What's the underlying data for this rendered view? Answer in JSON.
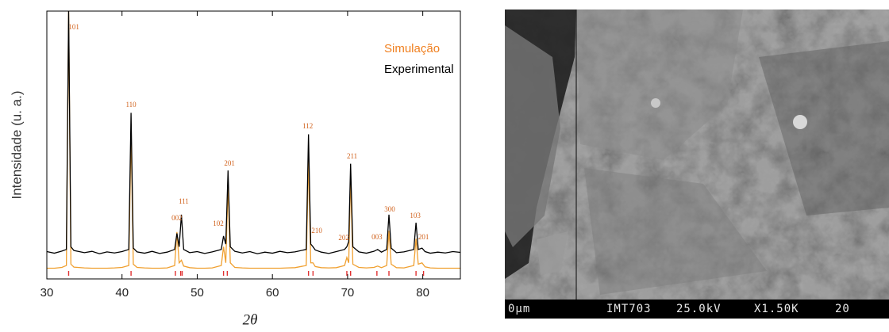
{
  "chart_data": {
    "type": "line",
    "ylabel": "Intensidade (u. a.)",
    "xlabel": "2θ",
    "xlim": [
      30,
      85
    ],
    "ylim": [
      0,
      100
    ],
    "xticks": [
      30,
      40,
      50,
      60,
      70,
      80
    ],
    "legend": "top-right",
    "x": [
      30,
      31,
      32,
      32.6,
      32.9,
      33.2,
      33.6,
      35,
      36,
      37,
      38,
      39,
      40,
      40.9,
      41.2,
      41.5,
      42,
      43,
      44,
      45,
      46,
      47.0,
      47.3,
      47.6,
      47.9,
      48.2,
      49,
      50,
      51,
      52,
      53.2,
      53.5,
      53.8,
      54.1,
      54.4,
      55,
      56,
      57,
      58,
      59,
      60,
      61,
      62,
      63,
      64.5,
      64.8,
      65.1,
      65.4,
      65.7,
      66.5,
      67.5,
      68.5,
      69.6,
      69.9,
      70.15,
      70.4,
      70.7,
      71.5,
      72.5,
      73.5,
      74,
      74.5,
      75.2,
      75.5,
      75.8,
      76.5,
      77.5,
      78.8,
      79.1,
      79.4,
      79.9,
      80.3,
      81,
      82,
      83,
      84,
      85
    ],
    "series": [
      {
        "name": "Simulação",
        "color": "#f0a030",
        "values": [
          4,
          4,
          4.3,
          5,
          100,
          5.5,
          4.4,
          4.1,
          4,
          4,
          4,
          4.1,
          4.3,
          5,
          55,
          5.5,
          4.3,
          4.1,
          4,
          4,
          4.1,
          5,
          17.5,
          6,
          7,
          4.8,
          4.2,
          4,
          4,
          4.1,
          5,
          12,
          6,
          35,
          6,
          4.3,
          4.1,
          4,
          4,
          4,
          4,
          4,
          4.1,
          4.2,
          5,
          45,
          6,
          6,
          4.6,
          4.2,
          4.1,
          4.2,
          5,
          8,
          6,
          38.5,
          5.5,
          4.3,
          4.1,
          4.3,
          4.8,
          4.2,
          5,
          18,
          5.5,
          4.2,
          4.1,
          5,
          15,
          5.5,
          6,
          4.5,
          4.1,
          4,
          4,
          4,
          4
        ]
      },
      {
        "name": "Experimental",
        "color": "#000000",
        "values": [
          10.2,
          9.6,
          10.4,
          11,
          100,
          12,
          10.6,
          9.8,
          10.3,
          9.4,
          10.1,
          9.7,
          10.2,
          11,
          62,
          11.5,
          10.1,
          9.6,
          10.3,
          9.5,
          10,
          11,
          17,
          12,
          24,
          11,
          9.8,
          10.2,
          9.5,
          10.1,
          11,
          16,
          13,
          40.5,
          12,
          10.3,
          9.7,
          10.2,
          9.4,
          10,
          9.6,
          10.3,
          9.8,
          10.1,
          11,
          54,
          13,
          12,
          10.8,
          10,
          9.5,
          10.2,
          11,
          12,
          14,
          43,
          12,
          10.1,
          9.6,
          10.3,
          11,
          10,
          11,
          24,
          11.5,
          9.8,
          10.1,
          11,
          21,
          11,
          11.5,
          10.2,
          9.6,
          10,
          9.7,
          10.2,
          9.9
        ]
      }
    ],
    "reflections": {
      "color": "#e03030",
      "x": [
        32.9,
        41.2,
        47.1,
        47.8,
        48.0,
        53.5,
        54.0,
        64.8,
        65.4,
        69.9,
        70.4,
        73.9,
        75.5,
        79.1,
        80.1
      ]
    },
    "annotations": [
      {
        "text": "101",
        "x": 33.6,
        "y": 93.8
      },
      {
        "text": "110",
        "x": 41.2,
        "y": 64.8
      },
      {
        "text": "002",
        "x": 47.3,
        "y": 22.5
      },
      {
        "text": "111",
        "x": 48.2,
        "y": 28.7
      },
      {
        "text": "102",
        "x": 52.8,
        "y": 20.4
      },
      {
        "text": "201",
        "x": 54.3,
        "y": 42.9
      },
      {
        "text": "112",
        "x": 64.7,
        "y": 56.8
      },
      {
        "text": "210",
        "x": 65.9,
        "y": 17.8
      },
      {
        "text": "202",
        "x": 69.5,
        "y": 15.1
      },
      {
        "text": "211",
        "x": 70.6,
        "y": 45.6
      },
      {
        "text": "003",
        "x": 73.9,
        "y": 15.4
      },
      {
        "text": "300",
        "x": 75.6,
        "y": 25.7
      },
      {
        "text": "103",
        "x": 79.0,
        "y": 23.4
      },
      {
        "text": "201",
        "x": 80.1,
        "y": 15.4
      }
    ]
  },
  "micrograph": {
    "scale": "0µm",
    "id": "IMT703",
    "voltage": "25.0kV",
    "magnification": "X1.50K",
    "scale_value": "20"
  }
}
